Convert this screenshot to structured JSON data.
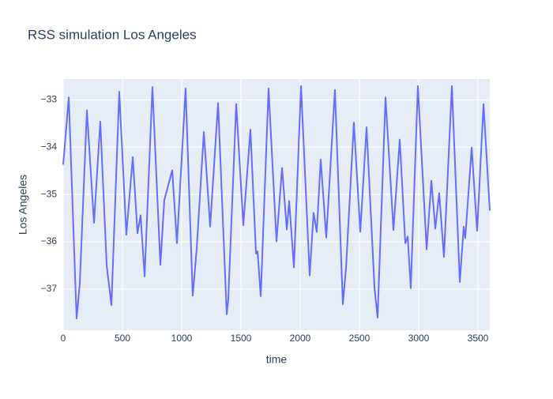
{
  "chart_data": {
    "type": "line",
    "title": "RSS simulation Los Angeles",
    "x_label": "time",
    "y_label": "Los Angeles",
    "x": [
      0,
      47,
      113,
      140,
      200,
      260,
      313,
      367,
      407,
      473,
      533,
      587,
      627,
      653,
      687,
      753,
      820,
      853,
      920,
      960,
      1033,
      1093,
      1127,
      1187,
      1240,
      1307,
      1380,
      1393,
      1460,
      1520,
      1580,
      1627,
      1640,
      1667,
      1733,
      1800,
      1847,
      1887,
      1907,
      1947,
      2007,
      2080,
      2113,
      2140,
      2173,
      2220,
      2293,
      2360,
      2387,
      2453,
      2507,
      2560,
      2627,
      2653,
      2720,
      2787,
      2840,
      2887,
      2907,
      2933,
      2993,
      3067,
      3107,
      3140,
      3173,
      3213,
      3280,
      3347,
      3380,
      3393,
      3447,
      3493,
      3547,
      3600
    ],
    "values": [
      -34.37,
      -32.95,
      -37.62,
      -36.88,
      -33.22,
      -35.6,
      -33.46,
      -36.5,
      -37.34,
      -32.83,
      -35.85,
      -34.21,
      -35.82,
      -35.44,
      -36.73,
      -32.73,
      -36.49,
      -35.12,
      -34.49,
      -36.03,
      -32.76,
      -37.14,
      -36.13,
      -33.68,
      -35.68,
      -33.07,
      -37.53,
      -37.22,
      -33.09,
      -35.65,
      -33.63,
      -36.25,
      -36.2,
      -37.15,
      -32.76,
      -35.99,
      -34.44,
      -35.74,
      -35.14,
      -36.54,
      -32.71,
      -36.71,
      -35.39,
      -35.79,
      -34.26,
      -35.91,
      -32.79,
      -37.32,
      -36.54,
      -33.48,
      -35.79,
      -33.58,
      -36.97,
      -37.6,
      -32.95,
      -35.75,
      -33.84,
      -36.03,
      -35.89,
      -36.98,
      -32.71,
      -36.16,
      -34.71,
      -35.72,
      -34.97,
      -36.32,
      -32.71,
      -36.85,
      -35.68,
      -35.92,
      -34.01,
      -35.77,
      -33.09,
      -35.34
    ],
    "color": "#636efa",
    "xlim": [
      0,
      3600
    ],
    "xticks": [
      0,
      500,
      1000,
      1500,
      2000,
      2500,
      3000,
      3500
    ],
    "ylim": [
      -37.87,
      -32.56
    ],
    "yticks": [
      {
        "value": -37,
        "label": "−37"
      },
      {
        "value": -36,
        "label": "−36"
      },
      {
        "value": -35,
        "label": "−35"
      },
      {
        "value": -34,
        "label": "−34"
      },
      {
        "value": -33,
        "label": "−33"
      }
    ],
    "grid": true
  }
}
